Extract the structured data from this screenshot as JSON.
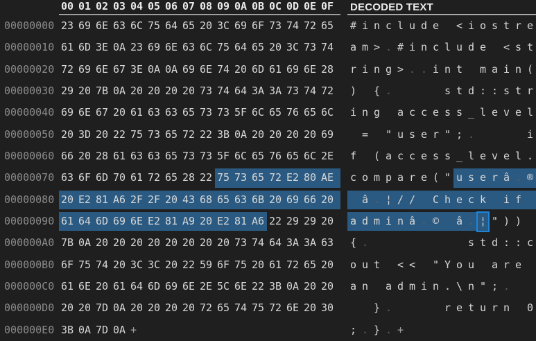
{
  "header": {
    "decoded_label": "DECODED TEXT",
    "byte_labels": [
      "00",
      "01",
      "02",
      "03",
      "04",
      "05",
      "06",
      "07",
      "08",
      "09",
      "0A",
      "0B",
      "0C",
      "0D",
      "0E",
      "0F"
    ]
  },
  "colors": {
    "background": "#1f1f1f",
    "text": "#d7d7d7",
    "dim_text": "#5f5f5f",
    "offset_text": "#8b8b8b",
    "header_text": "#eaeaea",
    "selection": "#2a5a82",
    "caret": "#1d84d9"
  },
  "add_byte_symbol": "+",
  "caret": {
    "row_index": 9,
    "char_index": 11
  },
  "rows": [
    {
      "offset": "00000000",
      "bytes": [
        "23",
        "69",
        "6E",
        "63",
        "6C",
        "75",
        "64",
        "65",
        "20",
        "3C",
        "69",
        "6F",
        "73",
        "74",
        "72",
        "65"
      ],
      "text": [
        "#",
        "i",
        "n",
        "c",
        "l",
        "u",
        "d",
        "e",
        " ",
        "<",
        "i",
        "o",
        "s",
        "t",
        "r",
        "e"
      ],
      "dim": []
    },
    {
      "offset": "00000010",
      "bytes": [
        "61",
        "6D",
        "3E",
        "0A",
        "23",
        "69",
        "6E",
        "63",
        "6C",
        "75",
        "64",
        "65",
        "20",
        "3C",
        "73",
        "74"
      ],
      "text": [
        "a",
        "m",
        ">",
        ".",
        "#",
        "i",
        "n",
        "c",
        "l",
        "u",
        "d",
        "e",
        " ",
        "<",
        "s",
        "t"
      ],
      "dim": [
        3
      ]
    },
    {
      "offset": "00000020",
      "bytes": [
        "72",
        "69",
        "6E",
        "67",
        "3E",
        "0A",
        "0A",
        "69",
        "6E",
        "74",
        "20",
        "6D",
        "61",
        "69",
        "6E",
        "28"
      ],
      "text": [
        "r",
        "i",
        "n",
        "g",
        ">",
        ".",
        ".",
        "i",
        "n",
        "t",
        " ",
        "m",
        "a",
        "i",
        "n",
        "("
      ],
      "dim": [
        5,
        6
      ]
    },
    {
      "offset": "00000030",
      "bytes": [
        "29",
        "20",
        "7B",
        "0A",
        "20",
        "20",
        "20",
        "20",
        "73",
        "74",
        "64",
        "3A",
        "3A",
        "73",
        "74",
        "72"
      ],
      "text": [
        ")",
        " ",
        "{",
        ".",
        " ",
        " ",
        " ",
        " ",
        "s",
        "t",
        "d",
        ":",
        ":",
        "s",
        "t",
        "r"
      ],
      "dim": [
        3
      ]
    },
    {
      "offset": "00000040",
      "bytes": [
        "69",
        "6E",
        "67",
        "20",
        "61",
        "63",
        "63",
        "65",
        "73",
        "73",
        "5F",
        "6C",
        "65",
        "76",
        "65",
        "6C"
      ],
      "text": [
        "i",
        "n",
        "g",
        " ",
        "a",
        "c",
        "c",
        "e",
        "s",
        "s",
        "_",
        "l",
        "e",
        "v",
        "e",
        "l"
      ],
      "dim": []
    },
    {
      "offset": "00000050",
      "bytes": [
        "20",
        "3D",
        "20",
        "22",
        "75",
        "73",
        "65",
        "72",
        "22",
        "3B",
        "0A",
        "20",
        "20",
        "20",
        "20",
        "69"
      ],
      "text": [
        " ",
        "=",
        " ",
        "\"",
        "u",
        "s",
        "e",
        "r",
        "\"",
        ";",
        ".",
        " ",
        " ",
        " ",
        " ",
        "i"
      ],
      "dim": [
        10
      ]
    },
    {
      "offset": "00000060",
      "bytes": [
        "66",
        "20",
        "28",
        "61",
        "63",
        "63",
        "65",
        "73",
        "73",
        "5F",
        "6C",
        "65",
        "76",
        "65",
        "6C",
        "2E"
      ],
      "text": [
        "f",
        " ",
        "(",
        "a",
        "c",
        "c",
        "e",
        "s",
        "s",
        "_",
        "l",
        "e",
        "v",
        "e",
        "l",
        "."
      ],
      "dim": []
    },
    {
      "offset": "00000070",
      "bytes": [
        "63",
        "6F",
        "6D",
        "70",
        "61",
        "72",
        "65",
        "28",
        "22",
        "75",
        "73",
        "65",
        "72",
        "E2",
        "80",
        "AE"
      ],
      "text": [
        "c",
        "o",
        "m",
        "p",
        "a",
        "r",
        "e",
        "(",
        "\"",
        "u",
        "s",
        "e",
        "r",
        "â",
        ".",
        "®"
      ],
      "dim": [
        14
      ],
      "hex_sel": [
        9,
        15
      ],
      "hex_sel_extend": true,
      "text_sel": [
        9,
        15
      ]
    },
    {
      "offset": "00000080",
      "bytes": [
        "20",
        "E2",
        "81",
        "A6",
        "2F",
        "2F",
        "20",
        "43",
        "68",
        "65",
        "63",
        "6B",
        "20",
        "69",
        "66",
        "20"
      ],
      "text": [
        " ",
        "â",
        ".",
        "¦",
        "/",
        "/",
        " ",
        "C",
        "h",
        "e",
        "c",
        "k",
        " ",
        "i",
        "f",
        " "
      ],
      "dim": [
        2
      ],
      "hex_sel": [
        0,
        15
      ],
      "hex_sel_extend": true,
      "text_sel": [
        0,
        15
      ]
    },
    {
      "offset": "00000090",
      "bytes": [
        "61",
        "64",
        "6D",
        "69",
        "6E",
        "E2",
        "81",
        "A9",
        "20",
        "E2",
        "81",
        "A6",
        "22",
        "29",
        "29",
        "20"
      ],
      "text": [
        "a",
        "d",
        "m",
        "i",
        "n",
        "â",
        ".",
        "©",
        " ",
        "â",
        ".",
        "¦",
        "\"",
        ")",
        ")",
        " "
      ],
      "dim": [
        6,
        10
      ],
      "hex_sel": [
        0,
        11
      ],
      "text_sel": [
        0,
        11
      ]
    },
    {
      "offset": "000000A0",
      "bytes": [
        "7B",
        "0A",
        "20",
        "20",
        "20",
        "20",
        "20",
        "20",
        "20",
        "20",
        "73",
        "74",
        "64",
        "3A",
        "3A",
        "63"
      ],
      "text": [
        "{",
        ".",
        " ",
        " ",
        " ",
        " ",
        " ",
        " ",
        " ",
        " ",
        "s",
        "t",
        "d",
        ":",
        ":",
        "c"
      ],
      "dim": [
        1
      ]
    },
    {
      "offset": "000000B0",
      "bytes": [
        "6F",
        "75",
        "74",
        "20",
        "3C",
        "3C",
        "20",
        "22",
        "59",
        "6F",
        "75",
        "20",
        "61",
        "72",
        "65",
        "20"
      ],
      "text": [
        "o",
        "u",
        "t",
        " ",
        "<",
        "<",
        " ",
        "\"",
        "Y",
        "o",
        "u",
        " ",
        "a",
        "r",
        "e",
        " "
      ],
      "dim": []
    },
    {
      "offset": "000000C0",
      "bytes": [
        "61",
        "6E",
        "20",
        "61",
        "64",
        "6D",
        "69",
        "6E",
        "2E",
        "5C",
        "6E",
        "22",
        "3B",
        "0A",
        "20",
        "20"
      ],
      "text": [
        "a",
        "n",
        " ",
        "a",
        "d",
        "m",
        "i",
        "n",
        ".",
        "\\",
        "n",
        "\"",
        ";",
        ".",
        " ",
        " "
      ],
      "dim": [
        13
      ]
    },
    {
      "offset": "000000D0",
      "bytes": [
        "20",
        "20",
        "7D",
        "0A",
        "20",
        "20",
        "20",
        "20",
        "72",
        "65",
        "74",
        "75",
        "72",
        "6E",
        "20",
        "30"
      ],
      "text": [
        " ",
        " ",
        "}",
        ".",
        " ",
        " ",
        " ",
        " ",
        "r",
        "e",
        "t",
        "u",
        "r",
        "n",
        " ",
        "0"
      ],
      "dim": [
        3
      ]
    },
    {
      "offset": "000000E0",
      "bytes": [
        "3B",
        "0A",
        "7D",
        "0A"
      ],
      "text": [
        ";",
        ".",
        "}",
        "."
      ],
      "dim": [
        1,
        3
      ],
      "plus": true
    }
  ]
}
